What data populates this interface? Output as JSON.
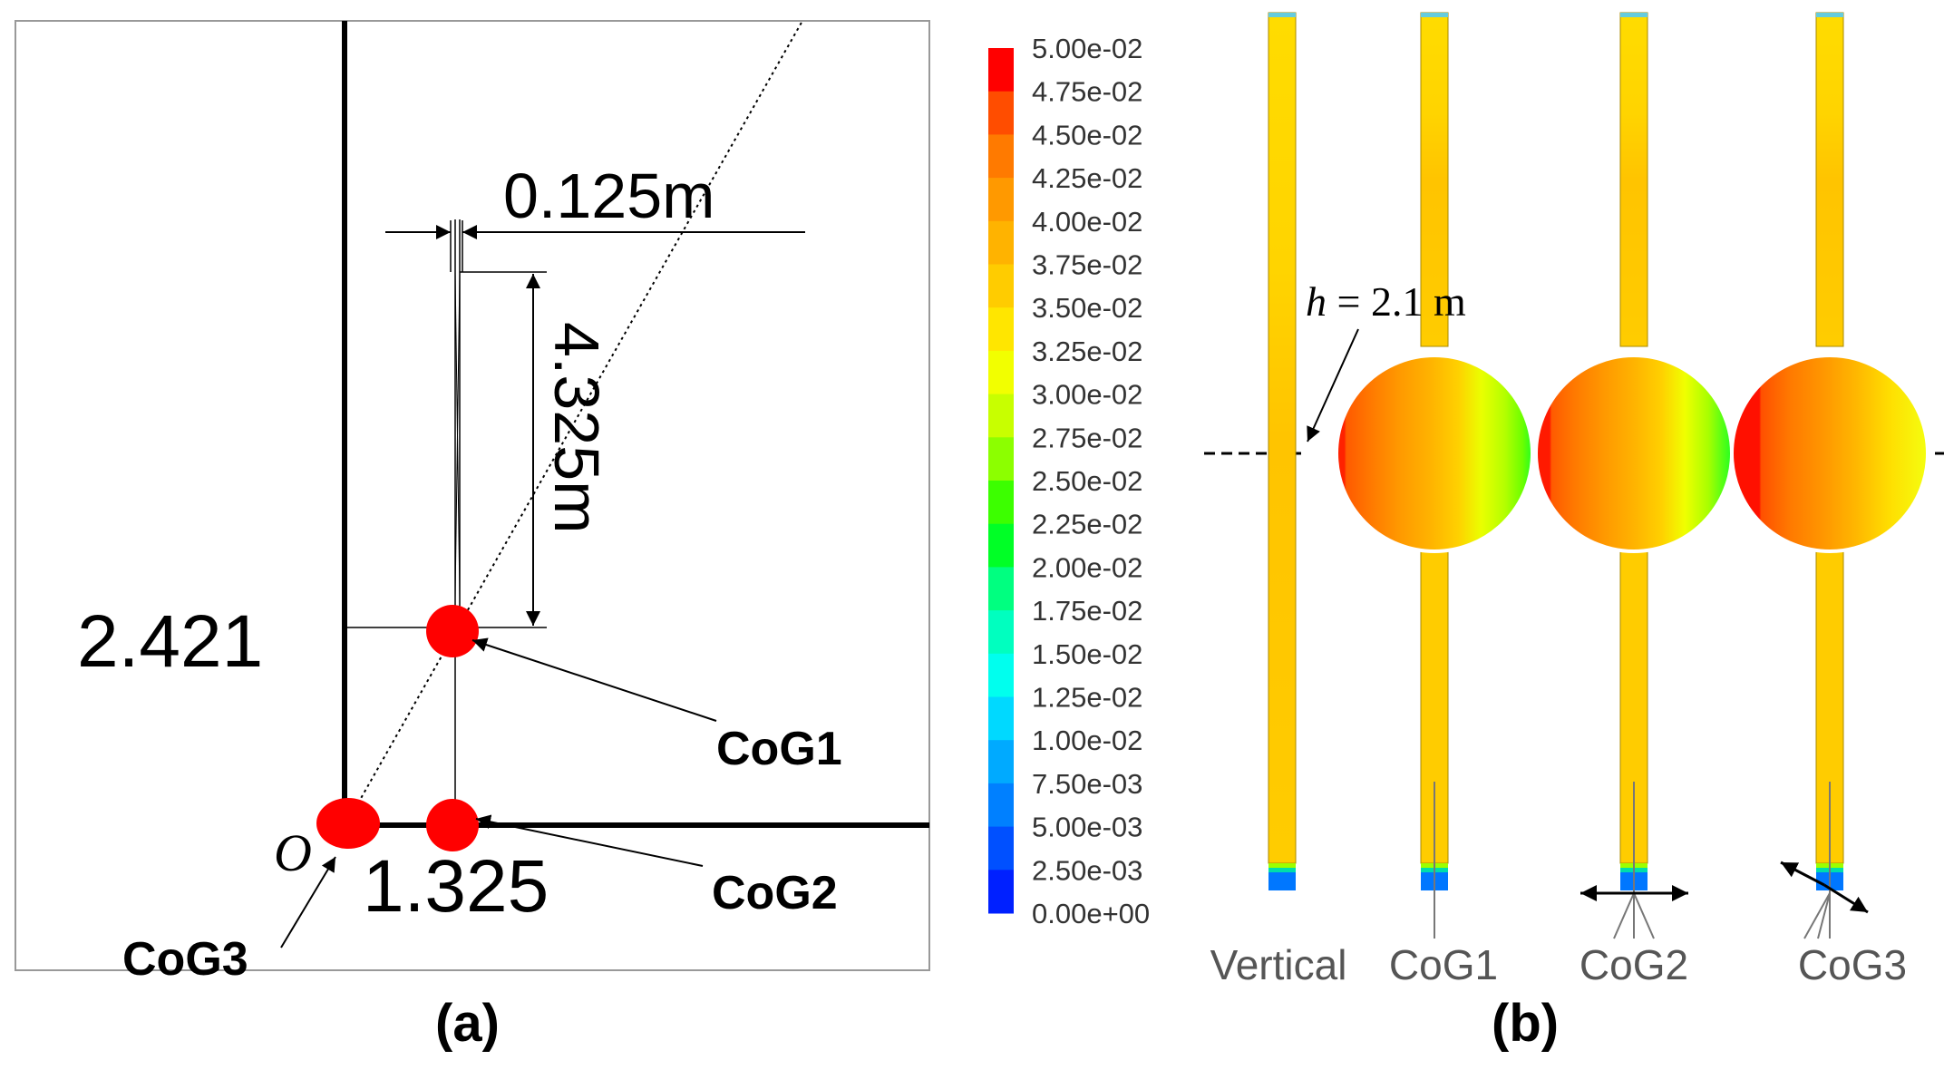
{
  "panel_a": {
    "dim_width": "0.125m",
    "dim_height": "4.325m",
    "y_value": "2.421",
    "x_value": "1.325",
    "origin": "O",
    "points": [
      "CoG1",
      "CoG2",
      "CoG3"
    ],
    "caption": "(a)"
  },
  "legend": {
    "ticks": [
      "5.00e-02",
      "4.75e-02",
      "4.50e-02",
      "4.25e-02",
      "4.00e-02",
      "3.75e-02",
      "3.50e-02",
      "3.25e-02",
      "3.00e-02",
      "2.75e-02",
      "2.50e-02",
      "2.25e-02",
      "2.00e-02",
      "1.75e-02",
      "1.50e-02",
      "1.25e-02",
      "1.00e-02",
      "7.50e-03",
      "5.00e-03",
      "2.50e-03",
      "0.00e+00"
    ],
    "colors": [
      "#ff0000",
      "#ff4d00",
      "#ff7a00",
      "#ff9900",
      "#ffb300",
      "#ffcc00",
      "#ffe600",
      "#f2ff00",
      "#c8ff00",
      "#8cff00",
      "#3cff00",
      "#00ff26",
      "#00ff80",
      "#00ffbf",
      "#00ffee",
      "#00d9ff",
      "#00aaff",
      "#0080ff",
      "#0050ff",
      "#0020ff"
    ]
  },
  "panel_b": {
    "h_label_var": "h",
    "h_label_rest": " = 2.1 m",
    "columns": [
      "Vertical",
      "CoG1",
      "CoG2",
      "CoG3"
    ],
    "caption": "(b)"
  }
}
